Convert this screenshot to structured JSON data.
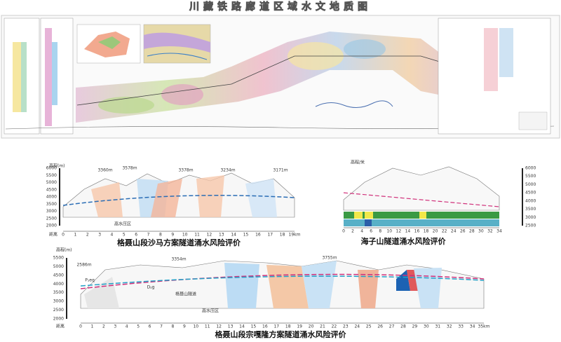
{
  "header": {
    "title": "川藏铁路廊道区域水文地质图"
  },
  "panels": [
    {
      "caption": "格聂山段沙马方案隧道涌水风险评价",
      "y_label": "高程(m)",
      "x_label": "距离",
      "yticks": [
        "6000",
        "5500",
        "5000",
        "4500",
        "4000",
        "3500",
        "3000",
        "2500",
        "2000"
      ],
      "xticks": [
        "0",
        "1",
        "2",
        "3",
        "4",
        "5",
        "6",
        "7",
        "8",
        "9",
        "10",
        "11",
        "12",
        "13",
        "14",
        "15",
        "16",
        "17",
        "18",
        "19km"
      ],
      "notes": [
        "3360m",
        "3578m",
        "3378m",
        "3234m",
        "3171m",
        "高水压区"
      ]
    },
    {
      "caption": "海子山隧道涌水风险评价",
      "y_label": "高程/米",
      "yticks": [
        "6000",
        "5500",
        "5000",
        "4500",
        "4000",
        "3500",
        "3000",
        "2500"
      ],
      "xticks": [
        "0",
        "2",
        "4",
        "6",
        "8",
        "10",
        "12",
        "14",
        "16",
        "18",
        "20",
        "22",
        "24",
        "26",
        "28",
        "30",
        "32",
        "34"
      ],
      "notes": []
    },
    {
      "caption": "格聂山段宗嘎隆方案隧道涌水风险评价",
      "y_label": "高程(m)",
      "x_label": "距离",
      "yticks": [
        "5500",
        "5000",
        "4500",
        "4000",
        "3500",
        "3000",
        "2500",
        "2000"
      ],
      "xticks": [
        "0",
        "1",
        "2",
        "3",
        "4",
        "5",
        "6",
        "7",
        "8",
        "9",
        "10",
        "11",
        "12",
        "13",
        "14",
        "15",
        "16",
        "17",
        "18",
        "19",
        "20",
        "21",
        "22",
        "23",
        "24",
        "25",
        "26",
        "27",
        "28",
        "29",
        "30",
        "31",
        "32",
        "33",
        "34",
        "35km"
      ],
      "notes": [
        "2586m",
        "3354m",
        "3755m",
        "格聂山隧道",
        "高水压区",
        "P₁eq",
        "D₂g"
      ]
    }
  ]
}
